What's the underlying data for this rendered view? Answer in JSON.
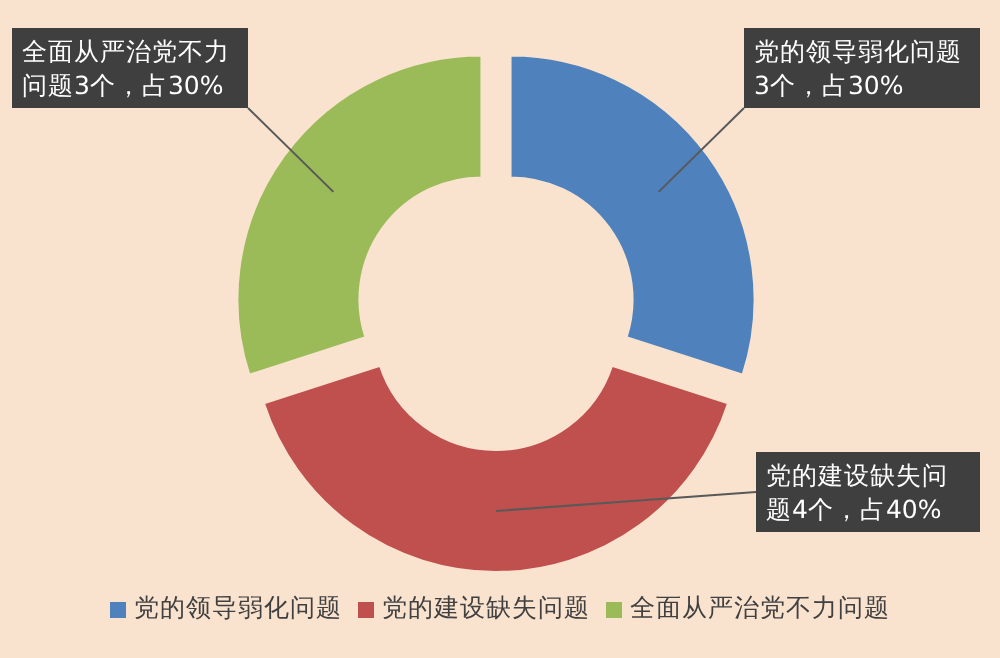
{
  "chart_data": {
    "type": "donut",
    "categories": [
      "党的领导弱化问题",
      "党的建设缺失问题",
      "全面从严治党不力问题"
    ],
    "values": [
      3,
      4,
      3
    ],
    "colors": [
      "#4f81bd",
      "#c0504d",
      "#9bbb59"
    ],
    "value_labels": [
      "党的领导弱化问题3个，占30%",
      "党的建设缺失问题4个，占40%",
      "全面从严治党不力问题3个，占30%"
    ],
    "legend": "bottom"
  }
}
